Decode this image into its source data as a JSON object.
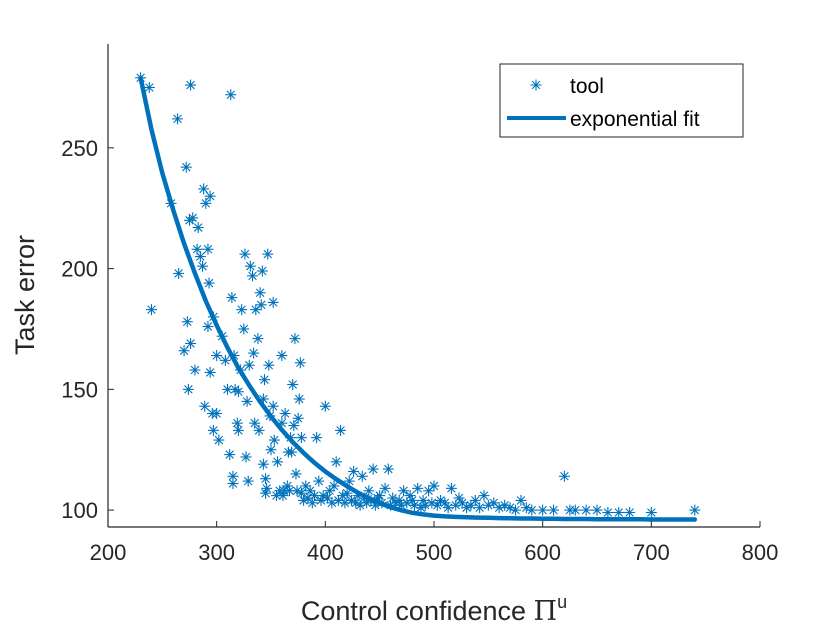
{
  "chart_data": {
    "type": "scatter",
    "xlabel": "Control confidence",
    "xlabel_symbol": "Π",
    "xlabel_superscript": "u",
    "ylabel": "Task error",
    "xlim": [
      200,
      800
    ],
    "ylim": [
      93,
      293
    ],
    "xticks": [
      "200",
      "300",
      "400",
      "500",
      "600",
      "700",
      "800"
    ],
    "yticks": [
      "100",
      "150",
      "200",
      "250"
    ],
    "grid": false,
    "legend": {
      "position": "top-right",
      "entries": [
        "tool",
        "exponential fit"
      ]
    },
    "colors": {
      "series": "#0072BD",
      "fit": "#0072BD",
      "axis": "#262626"
    },
    "series": [
      {
        "name": "tool",
        "marker": "asterisk",
        "points": [
          [
            230,
            279
          ],
          [
            238,
            275
          ],
          [
            240,
            183
          ],
          [
            258,
            227
          ],
          [
            264,
            262
          ],
          [
            265,
            198
          ],
          [
            270,
            166
          ],
          [
            272,
            242
          ],
          [
            273,
            178
          ],
          [
            274,
            150
          ],
          [
            275,
            220
          ],
          [
            276,
            276
          ],
          [
            276,
            169
          ],
          [
            278,
            221
          ],
          [
            280,
            158
          ],
          [
            282,
            208
          ],
          [
            283,
            217
          ],
          [
            285,
            205
          ],
          [
            287,
            201
          ],
          [
            288,
            233
          ],
          [
            289,
            143
          ],
          [
            290,
            227
          ],
          [
            292,
            208
          ],
          [
            292,
            176
          ],
          [
            293,
            194
          ],
          [
            294,
            157
          ],
          [
            294,
            230
          ],
          [
            296,
            140
          ],
          [
            297,
            133
          ],
          [
            297,
            180
          ],
          [
            300,
            164
          ],
          [
            300,
            140
          ],
          [
            302,
            129
          ],
          [
            305,
            172
          ],
          [
            308,
            162
          ],
          [
            310,
            150
          ],
          [
            312,
            123
          ],
          [
            313,
            272
          ],
          [
            314,
            188
          ],
          [
            315,
            114
          ],
          [
            315,
            111
          ],
          [
            316,
            164
          ],
          [
            317,
            150
          ],
          [
            319,
            136
          ],
          [
            320,
            133
          ],
          [
            320,
            149
          ],
          [
            322,
            158
          ],
          [
            323,
            183
          ],
          [
            325,
            175
          ],
          [
            326,
            206
          ],
          [
            327,
            122
          ],
          [
            328,
            145
          ],
          [
            329,
            112
          ],
          [
            330,
            160
          ],
          [
            331,
            201
          ],
          [
            333,
            197
          ],
          [
            334,
            165
          ],
          [
            335,
            136
          ],
          [
            336,
            183
          ],
          [
            338,
            171
          ],
          [
            339,
            133
          ],
          [
            340,
            190
          ],
          [
            341,
            185
          ],
          [
            342,
            199
          ],
          [
            343,
            146
          ],
          [
            343,
            119
          ],
          [
            344,
            154
          ],
          [
            345,
            113
          ],
          [
            345,
            107
          ],
          [
            346,
            109
          ],
          [
            347,
            206
          ],
          [
            348,
            160
          ],
          [
            349,
            139
          ],
          [
            350,
            125
          ],
          [
            352,
            186
          ],
          [
            352,
            143
          ],
          [
            353,
            129
          ],
          [
            355,
            106
          ],
          [
            356,
            120
          ],
          [
            358,
            108
          ],
          [
            360,
            136
          ],
          [
            360,
            164
          ],
          [
            361,
            106
          ],
          [
            362,
            108
          ],
          [
            363,
            140
          ],
          [
            365,
            110
          ],
          [
            366,
            124
          ],
          [
            367,
            108
          ],
          [
            368,
            130
          ],
          [
            369,
            124
          ],
          [
            370,
            152
          ],
          [
            371,
            135
          ],
          [
            372,
            171
          ],
          [
            373,
            115
          ],
          [
            374,
            108
          ],
          [
            375,
            138
          ],
          [
            376,
            146
          ],
          [
            377,
            161
          ],
          [
            378,
            107
          ],
          [
            378,
            130
          ],
          [
            380,
            104
          ],
          [
            382,
            110
          ],
          [
            384,
            105
          ],
          [
            386,
            108
          ],
          [
            388,
            103
          ],
          [
            390,
            106
          ],
          [
            392,
            130
          ],
          [
            394,
            112
          ],
          [
            396,
            104
          ],
          [
            398,
            106
          ],
          [
            400,
            143
          ],
          [
            402,
            105
          ],
          [
            404,
            108
          ],
          [
            406,
            103
          ],
          [
            408,
            110
          ],
          [
            410,
            120
          ],
          [
            412,
            104
          ],
          [
            414,
            133
          ],
          [
            416,
            106
          ],
          [
            418,
            103
          ],
          [
            420,
            107
          ],
          [
            422,
            112
          ],
          [
            424,
            104
          ],
          [
            426,
            116
          ],
          [
            428,
            103
          ],
          [
            430,
            106
          ],
          [
            432,
            102
          ],
          [
            434,
            114
          ],
          [
            436,
            105
          ],
          [
            438,
            103
          ],
          [
            440,
            108
          ],
          [
            442,
            104
          ],
          [
            444,
            117
          ],
          [
            446,
            102
          ],
          [
            448,
            105
          ],
          [
            450,
            106
          ],
          [
            452,
            103
          ],
          [
            455,
            109
          ],
          [
            458,
            117
          ],
          [
            460,
            102
          ],
          [
            462,
            105
          ],
          [
            465,
            103
          ],
          [
            468,
            104
          ],
          [
            470,
            102
          ],
          [
            472,
            108
          ],
          [
            475,
            103
          ],
          [
            478,
            106
          ],
          [
            480,
            104
          ],
          [
            482,
            102
          ],
          [
            485,
            109
          ],
          [
            488,
            101
          ],
          [
            490,
            104
          ],
          [
            492,
            102
          ],
          [
            495,
            108
          ],
          [
            498,
            103
          ],
          [
            500,
            110
          ],
          [
            503,
            102
          ],
          [
            506,
            104
          ],
          [
            510,
            103
          ],
          [
            513,
            101
          ],
          [
            516,
            109
          ],
          [
            520,
            102
          ],
          [
            523,
            105
          ],
          [
            526,
            103
          ],
          [
            530,
            101
          ],
          [
            534,
            102
          ],
          [
            538,
            104
          ],
          [
            542,
            101
          ],
          [
            546,
            106
          ],
          [
            550,
            102
          ],
          [
            555,
            103
          ],
          [
            560,
            101
          ],
          [
            565,
            102
          ],
          [
            570,
            101
          ],
          [
            575,
            100
          ],
          [
            580,
            104
          ],
          [
            585,
            101
          ],
          [
            590,
            100
          ],
          [
            600,
            100
          ],
          [
            610,
            100
          ],
          [
            620,
            114
          ],
          [
            625,
            100
          ],
          [
            630,
            100
          ],
          [
            640,
            100
          ],
          [
            650,
            100
          ],
          [
            660,
            99
          ],
          [
            670,
            99
          ],
          [
            680,
            99
          ],
          [
            700,
            99
          ],
          [
            740,
            100
          ]
        ]
      },
      {
        "name": "exponential fit",
        "type": "line",
        "x": [
          230,
          240,
          250,
          260,
          270,
          280,
          290,
          300,
          310,
          320,
          330,
          340,
          350,
          360,
          370,
          380,
          390,
          400,
          410,
          420,
          430,
          440,
          450,
          460,
          470,
          480,
          490,
          500,
          510,
          520,
          530,
          540,
          550,
          560,
          570,
          580,
          590,
          600,
          610,
          620,
          630,
          640,
          650,
          660,
          670,
          680,
          690,
          700,
          710,
          720,
          730,
          740
        ],
        "y": [
          279,
          257.5,
          239.6,
          224.3,
          210.3,
          198.1,
          186.6,
          176.5,
          167.3,
          158.9,
          151.6,
          144.9,
          138.7,
          133.2,
          128.2,
          123.7,
          119.6,
          116.0,
          112.8,
          109.9,
          107.2,
          104.9,
          102.9,
          101.2,
          99.9,
          98.9,
          98.2,
          97.7,
          97.4,
          97.2,
          97.0,
          96.9,
          96.8,
          96.7,
          96.6,
          96.5,
          96.5,
          96.4,
          96.4,
          96.3,
          96.3,
          96.3,
          96.2,
          96.2,
          96.2,
          96.2,
          96.2,
          96.1,
          96.1,
          96.1,
          96.1,
          96.1
        ]
      }
    ]
  }
}
